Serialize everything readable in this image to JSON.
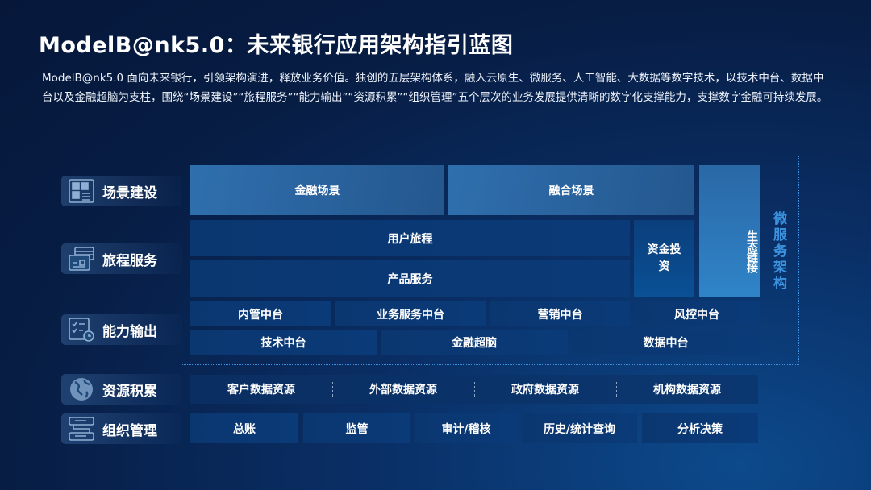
{
  "title": "ModelB@nk5.0：未来银行应用架构指引蓝图",
  "description": "ModelB@nk5.0 面向未来银行，引领架构演进，释放业务价值。独创的五层架构体系，融入云原生、微服务、人工智能、大数据等数字技术，以技术中台、数据中台以及金融超脑为支柱，围绕“场景建设”“旅程服务”“能力输出”“资源积累”“组织管理”五个层次的业务发展提供清晰的数字化支撑能力，支撑数字金融可持续发展。",
  "layers": [
    {
      "label": "场景建设",
      "icon": "dashboard-icon"
    },
    {
      "label": "旅程服务",
      "icon": "cards-icon"
    },
    {
      "label": "能力输出",
      "icon": "checklist-clock-icon"
    },
    {
      "label": "资源积累",
      "icon": "globe-icon"
    },
    {
      "label": "组织管理",
      "icon": "flowchart-icon"
    }
  ],
  "scene": {
    "finance": "金融场景",
    "fusion": "融合场景",
    "ecosystem": "生态链接"
  },
  "journey": {
    "user": "用户旅程",
    "product": "产品服务",
    "capital": "资金投资"
  },
  "capability": {
    "internal": "内管中台",
    "business": "业务服务中台",
    "marketing": "营销中台",
    "risk": "风控中台",
    "tech": "技术中台",
    "brain": "金融超脑",
    "data": "数据中台"
  },
  "microservice": "微服务架构",
  "resources": [
    "客户数据资源",
    "外部数据资源",
    "政府数据资源",
    "机构数据资源"
  ],
  "organization": [
    "总账",
    "监管",
    "审计/稽核",
    "历史/统计查询",
    "分析决策"
  ],
  "colors": {
    "accent": "#3b93df",
    "background": "#071d44"
  }
}
